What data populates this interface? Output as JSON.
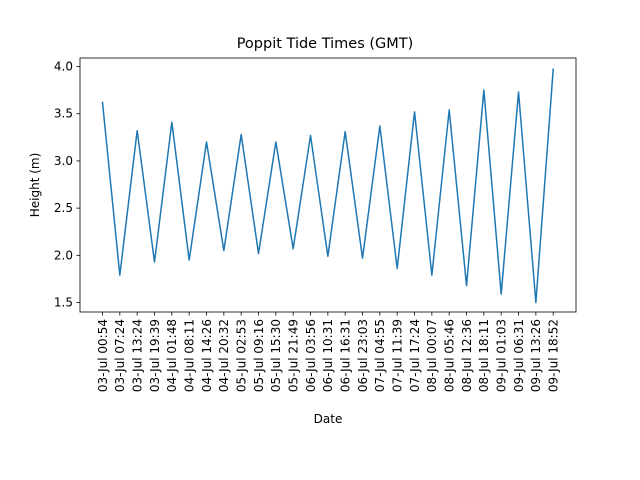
{
  "chart_data": {
    "type": "line",
    "title": "Poppit Tide Times (GMT)",
    "xlabel": "Date",
    "ylabel": "Height (m)",
    "ylim": [
      1.4,
      4.09
    ],
    "yticks": [
      "1.5",
      "2.0",
      "2.5",
      "3.0",
      "3.5",
      "4.0"
    ],
    "grid": false,
    "legend": "none",
    "line_color": "#1f77b4",
    "x": [
      "03-Jul 00:54",
      "03-Jul 07:24",
      "03-Jul 13:24",
      "03-Jul 19:39",
      "04-Jul 01:48",
      "04-Jul 08:11",
      "04-Jul 14:26",
      "04-Jul 20:32",
      "05-Jul 02:53",
      "05-Jul 09:16",
      "05-Jul 15:30",
      "05-Jul 21:49",
      "06-Jul 03:56",
      "06-Jul 10:31",
      "06-Jul 16:31",
      "06-Jul 23:03",
      "07-Jul 04:55",
      "07-Jul 11:39",
      "07-Jul 17:24",
      "08-Jul 00:07",
      "08-Jul 05:46",
      "08-Jul 12:36",
      "08-Jul 18:11",
      "09-Jul 01:03",
      "09-Jul 06:31",
      "09-Jul 13:26",
      "09-Jul 18:52"
    ],
    "series": [
      {
        "values": [
          3.62,
          1.79,
          3.32,
          1.93,
          3.41,
          1.95,
          3.2,
          2.05,
          3.28,
          2.02,
          3.2,
          2.07,
          3.27,
          1.99,
          3.31,
          1.97,
          3.37,
          1.86,
          3.52,
          1.79,
          3.54,
          1.68,
          3.75,
          1.59,
          3.73,
          1.5,
          3.97
        ]
      }
    ]
  }
}
